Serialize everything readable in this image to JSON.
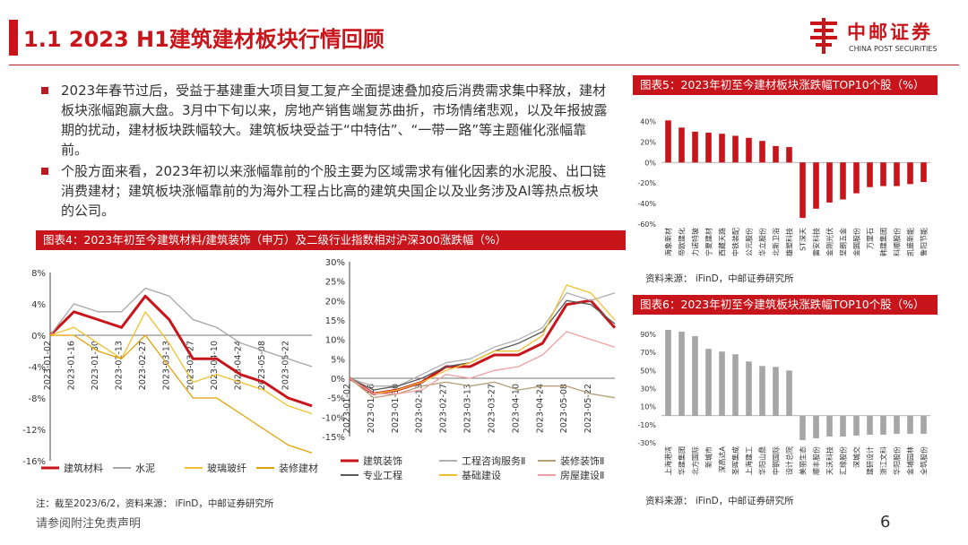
{
  "header": {
    "title": "1.1 2023 H1建筑建材板块行情回顾",
    "logo_name": "中邮证券",
    "logo_en": "CHINA POST SECURITIES"
  },
  "bullets": [
    "2023年春节过后，受益于基建重大项目复工复产全面提速叠加疫后消费需求集中释放，建材板块涨幅跑赢大盘。3月中下旬以来，房地产销售端复苏曲折，市场情绪悲观，以及年报披露期的扰动，建材板块跌幅较大。建筑板块受益于“中特估”、“一带一路”等主题催化涨幅靠前。",
    "个股方面来看，2023年初以来涨幅靠前的个股主要为区域需求有催化因素的水泥股、出口链消费建材；建筑板块涨幅靠前的为海外工程占比高的建筑央国企以及业务涉及AI等热点板块的公司。"
  ],
  "chart4": {
    "caption": "图表4：2023年初至今建筑材料/建筑装饰（申万）及二级行业指数相对沪深300涨跌幅（%）"
  },
  "chart5": {
    "caption": "图表5：2023年初至今建材板块涨跌幅TOP10个股（%）",
    "source": "资料来源：  iFinD，中邮证券研究所"
  },
  "chart6": {
    "caption": "图表6：2023年初至今建筑板块涨跌幅TOP10个股（%）",
    "source": "资料来源：  iFinD，中邮证券研究所"
  },
  "footer": {
    "note": "注：截至2023/6/2，资料来源：  iFinD，中邮证券研究所",
    "disclaimer": "请参阅附注免责声明",
    "page": "6"
  },
  "chart_data": [
    {
      "type": "line",
      "x": [
        "2023-01-02",
        "2023-01-16",
        "2023-01-30",
        "2023-02-13",
        "2023-02-27",
        "2023-03-13",
        "2023-03-27",
        "2023-04-10",
        "2023-04-24",
        "2023-05-08",
        "2023-05-22",
        "2023-06-02"
      ],
      "xticks": [
        "2023-01-02",
        "2023-01-16",
        "2023-01-30",
        "2023-02-13",
        "2023-02-27",
        "2023-03-13",
        "2023-03-27",
        "2023-04-10",
        "2023-04-24",
        "2023-05-08",
        "2023-05-22"
      ],
      "yticks": [
        "8%",
        "4%",
        "0%",
        "-4%",
        "-8%",
        "-12%",
        "-16%"
      ],
      "ylim": [
        -16,
        8
      ],
      "series": [
        {
          "name": "建筑材料",
          "color": "#c8151b",
          "width": 3,
          "values": [
            0,
            3,
            2,
            1,
            5,
            2,
            -3,
            -3,
            -5,
            -6,
            -8,
            -9
          ]
        },
        {
          "name": "水泥",
          "color": "#a6a6a6",
          "width": 1.3,
          "values": [
            0,
            4,
            3,
            3,
            6,
            5,
            2,
            1,
            -1,
            -2,
            -3,
            -4
          ]
        },
        {
          "name": "玻璃玻纤",
          "color": "#f2c02f",
          "width": 1.3,
          "values": [
            0,
            1,
            -1,
            -3,
            3,
            -1,
            -6,
            -5,
            -6,
            -7,
            -9,
            -10
          ]
        },
        {
          "name": "装修建材",
          "color": "#e3a008",
          "width": 1.3,
          "values": [
            0,
            0,
            -2,
            -3,
            0,
            -4,
            -8,
            -8,
            -10,
            -12,
            -14,
            -15
          ]
        }
      ]
    },
    {
      "type": "line",
      "x": [
        "2023-01-02",
        "2023-01-16",
        "2023-01-30",
        "2023-02-13",
        "2023-02-27",
        "2023-03-13",
        "2023-03-27",
        "2023-04-10",
        "2023-04-24",
        "2023-05-08",
        "2023-05-22",
        "2023-06-02"
      ],
      "xticks": [
        "2023-01-02",
        "2023-01-16",
        "2023-01-30",
        "2023-02-13",
        "2023-02-27",
        "2023-03-13",
        "2023-03-27",
        "2023-04-10",
        "2023-04-24",
        "2023-05-08",
        "2023-05-22"
      ],
      "yticks": [
        "30%",
        "25%",
        "20%",
        "15%",
        "10%",
        "5%",
        "0%",
        "-5%",
        "-10%",
        "-15%"
      ],
      "ylim": [
        -15,
        30
      ],
      "series": [
        {
          "name": "建筑装饰",
          "color": "#c8151b",
          "width": 3,
          "values": [
            0,
            -4,
            -3,
            -1,
            3,
            3,
            6,
            6,
            9,
            19,
            20,
            13
          ]
        },
        {
          "name": "工程咨询服务Ⅱ",
          "color": "#b0b0b0",
          "width": 1.3,
          "values": [
            0,
            -2,
            -2,
            1,
            4,
            5,
            8,
            10,
            13,
            22,
            20,
            22
          ]
        },
        {
          "name": "装修装饰Ⅱ",
          "color": "#b8a07a",
          "width": 1.3,
          "values": [
            0,
            -5,
            -4,
            -2,
            -1,
            -2,
            -1,
            -3,
            -2,
            -2,
            -4,
            -5
          ]
        },
        {
          "name": "专业工程",
          "color": "#595959",
          "width": 1.3,
          "values": [
            0,
            -3,
            -2,
            0,
            3,
            4,
            7,
            9,
            12,
            20,
            19,
            14
          ]
        },
        {
          "name": "基础建设",
          "color": "#f2c02f",
          "width": 1.3,
          "values": [
            0,
            -4,
            -3,
            -1,
            2,
            4,
            7,
            7,
            11,
            24,
            22,
            15
          ]
        },
        {
          "name": "房屋建设Ⅱ",
          "color": "#f0a0a0",
          "width": 1.3,
          "values": [
            0,
            -4,
            -4,
            -3,
            1,
            0,
            2,
            3,
            6,
            12,
            10,
            8
          ]
        }
      ]
    },
    {
      "type": "bar",
      "categories": [
        "海象新材",
        "帝欧建化",
        "力诺特玻",
        "宁夏建材",
        "西藏天路",
        "中铁装配",
        "公元股份",
        "华立股份",
        "北新卫浴",
        "雄塑科技",
        "ST深天",
        "雷安科技",
        "金刚光伏",
        "坚朗五金",
        "金圆股份",
        "万里石",
        "韩建集团",
        "科顺股份",
        "凯盛新能",
        "鲁阳节能"
      ],
      "values": [
        41,
        34,
        30,
        29,
        28,
        26,
        24,
        21,
        16,
        15,
        -54,
        -45,
        -39,
        -36,
        -30,
        -24,
        -23,
        -23,
        -21,
        -19
      ],
      "yticks": [
        "40%",
        "20%",
        "0%",
        "-20%",
        "-40%",
        "-60%"
      ],
      "ylim": [
        -60,
        50
      ]
    },
    {
      "type": "bar",
      "categories": [
        "上海港湾",
        "华建集团",
        "北方国际",
        "新城市",
        "深高达A",
        "圣晖集成",
        "上海建工",
        "华阳山鼎",
        "中钢国际",
        "设计总院",
        "美丽生态",
        "顺丰股份",
        "天沃科技",
        "汇缘股份",
        "深城交",
        "建研设计",
        "浙江文科",
        "华阳股份",
        "金埔园林",
        "全筑股份"
      ],
      "values": [
        95,
        93,
        88,
        74,
        71,
        68,
        60,
        55,
        54,
        50,
        -27,
        -25,
        -23,
        -23,
        -22,
        -21,
        -21,
        -20,
        -20,
        -20
      ],
      "yticks": [
        "90%",
        "70%",
        "50%",
        "30%",
        "10%",
        "-10%",
        "-30%"
      ],
      "ylim": [
        -30,
        95
      ]
    }
  ]
}
